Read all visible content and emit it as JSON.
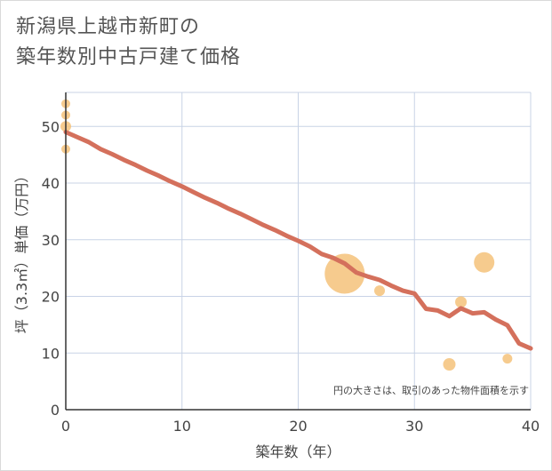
{
  "title_line1": "新潟県上越市新町の",
  "title_line2": "築年数別中古戸建て価格",
  "chart_data": {
    "type": "scatter",
    "title": "新潟県上越市新町の築年数別中古戸建て価格",
    "xlabel": "築年数（年）",
    "ylabel": "坪（3.3㎡）単価（万円）",
    "xlim": [
      0,
      40
    ],
    "ylim": [
      0,
      56
    ],
    "xticks": [
      0,
      10,
      20,
      30,
      40
    ],
    "yticks": [
      0,
      10,
      20,
      30,
      40,
      50
    ],
    "xtick_labels": [
      "0",
      "10",
      "20",
      "30",
      "40"
    ],
    "ytick_labels": [
      "0",
      "10",
      "20",
      "30",
      "40",
      "50"
    ],
    "grid": true,
    "annotation": "円の大きさは、取引のあった物件面積を示す",
    "colors": {
      "bubble": "#f5c27a",
      "line": "#d4705c",
      "grid": "#c8d3e6"
    },
    "bubbles": [
      {
        "x": 0,
        "y": 54,
        "size": 1
      },
      {
        "x": 0,
        "y": 52,
        "size": 1
      },
      {
        "x": 0,
        "y": 50,
        "size": 1.2
      },
      {
        "x": 0,
        "y": 46,
        "size": 1
      },
      {
        "x": 24,
        "y": 24,
        "size": 4.5
      },
      {
        "x": 27,
        "y": 21,
        "size": 1.2
      },
      {
        "x": 33,
        "y": 8,
        "size": 1.4
      },
      {
        "x": 34,
        "y": 19,
        "size": 1.3
      },
      {
        "x": 36,
        "y": 26,
        "size": 2.3
      },
      {
        "x": 38,
        "y": 9,
        "size": 1.1
      }
    ],
    "series": [
      {
        "name": "trend",
        "x": [
          0,
          1,
          2,
          3,
          4,
          5,
          6,
          7,
          8,
          9,
          10,
          11,
          12,
          13,
          14,
          15,
          16,
          17,
          18,
          19,
          20,
          21,
          22,
          23,
          24,
          25,
          26,
          27,
          28,
          29,
          30,
          31,
          32,
          33,
          34,
          35,
          36,
          37,
          38,
          39,
          40
        ],
        "values": [
          49,
          48.1,
          47.2,
          46.0,
          45.1,
          44.1,
          43.2,
          42.2,
          41.3,
          40.3,
          39.4,
          38.4,
          37.4,
          36.5,
          35.5,
          34.6,
          33.6,
          32.6,
          31.7,
          30.7,
          29.8,
          28.8,
          27.5,
          26.8,
          25.8,
          24.2,
          23.5,
          22.9,
          21.9,
          21.0,
          20.5,
          17.8,
          17.5,
          16.5,
          17.9,
          17.0,
          17.2,
          15.9,
          14.9,
          11.7,
          10.8
        ]
      }
    ]
  }
}
